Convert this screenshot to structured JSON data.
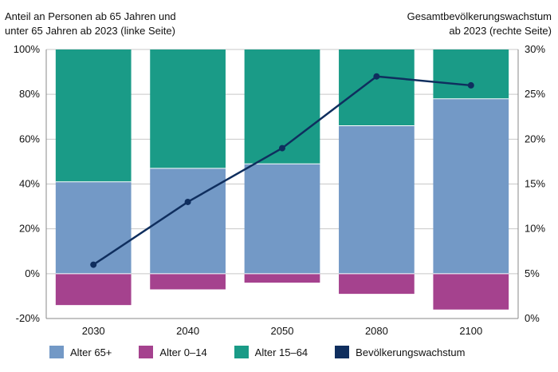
{
  "chart_data": {
    "type": "bar",
    "stacked": true,
    "categories": [
      "2030",
      "2040",
      "2050",
      "2080",
      "2100"
    ],
    "series": [
      {
        "name": "Alter 65+",
        "key": "a65",
        "color": "#7399c6",
        "values": [
          41,
          47,
          49,
          66,
          78
        ]
      },
      {
        "name": "Alter 0–14",
        "key": "a014",
        "color": "#a5428e",
        "values": [
          -14,
          -7,
          -4,
          -9,
          -16
        ]
      },
      {
        "name": "Alter 15–64",
        "key": "a1564",
        "color": "#1a9b87",
        "values": [
          59,
          53,
          51,
          34,
          22
        ]
      }
    ],
    "line_series": {
      "name": "Bevölkerungswachstum",
      "color": "#0f2e5e",
      "axis": "right",
      "values": [
        6,
        13,
        19,
        27,
        26
      ]
    },
    "ylabel_left": "Anteil an Personen ab 65 Jahren und unter 65 Jahren ab 2023 (linke Seite)",
    "ylabel_left_lines": [
      "Anteil an Personen ab 65 Jahren und",
      "unter 65 Jahren ab 2023 (linke Seite)"
    ],
    "ylabel_right": "Gesamtbevölkerungswachstum ab 2023 (rechte Seite)",
    "ylabel_right_lines": [
      "Gesamtbevölkerungswachstum",
      "ab 2023 (rechte Seite)"
    ],
    "ylim_left": [
      -20,
      100
    ],
    "ylim_right": [
      0,
      30
    ],
    "yticks_left": [
      "100%",
      "80%",
      "60%",
      "40%",
      "20%",
      "0%",
      "-20%"
    ],
    "yticks_right": [
      "30%",
      "25%",
      "20%",
      "15%",
      "10%",
      "5%",
      "0%"
    ],
    "grid": true,
    "legend_position": "bottom"
  }
}
